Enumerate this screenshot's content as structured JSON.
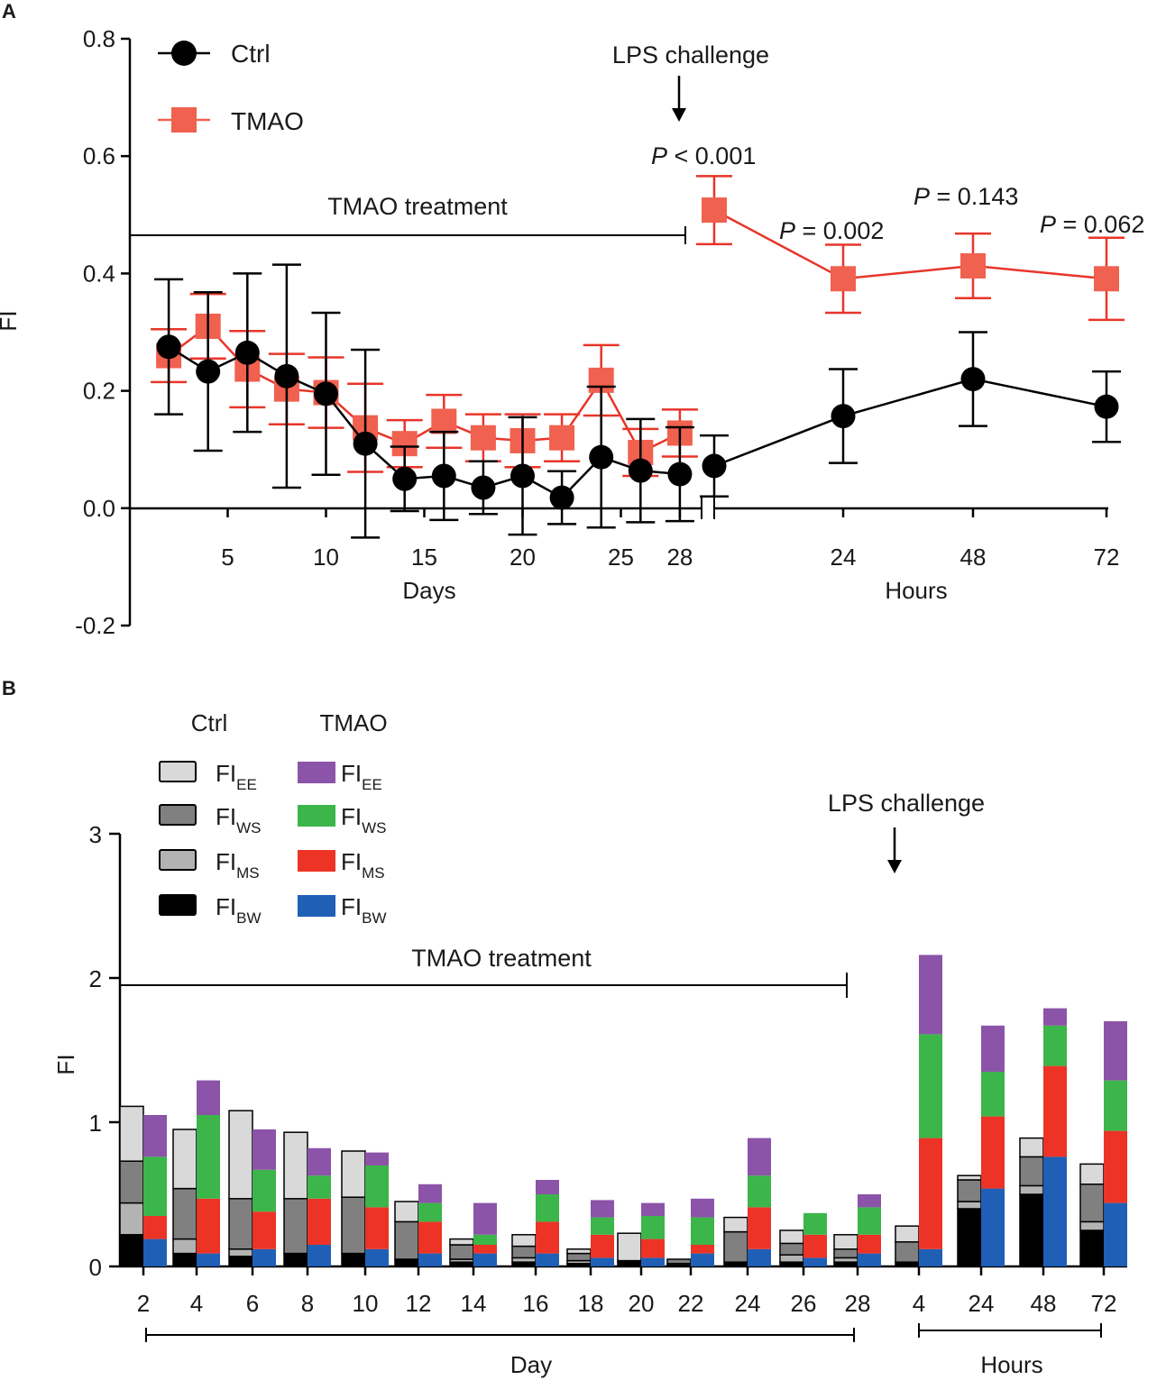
{
  "colors": {
    "ctrl": "#000000",
    "tmao": "#f0614f",
    "tmao_stroke": "#e8352a",
    "ctrl_EE": "#d9d9d9",
    "ctrl_WS": "#808080",
    "ctrl_MS": "#b3b3b3",
    "ctrl_BW": "#000000",
    "tmao_EE": "#8b54a8",
    "tmao_WS": "#3cb54a",
    "tmao_MS": "#ec3326",
    "tmao_BW": "#1f5fb5"
  },
  "chart_data": [
    {
      "panel": "A",
      "type": "line",
      "ylabel": "FI",
      "ylim": [
        -0.2,
        0.8
      ],
      "yticks": [
        "-0.2",
        "0.0",
        "0.2",
        "0.4",
        "0.6",
        "0.8"
      ],
      "ytick_values": [
        -0.2,
        0.0,
        0.2,
        0.4,
        0.6,
        0.8
      ],
      "days_axis": {
        "label": "Days",
        "ticks": [
          "5",
          "10",
          "15",
          "20",
          "25",
          "28"
        ],
        "tick_values": [
          5,
          10,
          15,
          20,
          25,
          28
        ]
      },
      "hours_axis": {
        "label": "Hours",
        "ticks": [
          "24",
          "48",
          "72"
        ],
        "tick_values": [
          24,
          48,
          72
        ]
      },
      "legend": [
        {
          "name": "Ctrl",
          "marker": "circle"
        },
        {
          "name": "TMAO",
          "marker": "square"
        }
      ],
      "series": [
        {
          "name": "Ctrl",
          "days": [
            2,
            4,
            6,
            8,
            10,
            12,
            14,
            16,
            18,
            20,
            22,
            24,
            26,
            28
          ],
          "values": [
            0.275,
            0.233,
            0.265,
            0.225,
            0.195,
            0.11,
            0.05,
            0.055,
            0.035,
            0.055,
            0.018,
            0.087,
            0.064,
            0.058
          ],
          "errors": [
            0.115,
            0.135,
            0.135,
            0.19,
            0.138,
            0.16,
            0.055,
            0.075,
            0.045,
            0.1,
            0.045,
            0.12,
            0.088,
            0.08
          ],
          "hours": [
            4,
            24,
            48,
            72
          ],
          "hour_values": [
            0.072,
            0.157,
            0.22,
            0.173
          ],
          "hour_errors": [
            0.052,
            0.08,
            0.08,
            0.06
          ]
        },
        {
          "name": "TMAO",
          "days": [
            2,
            4,
            6,
            8,
            10,
            12,
            14,
            16,
            18,
            20,
            22,
            24,
            26,
            28
          ],
          "values": [
            0.26,
            0.31,
            0.237,
            0.203,
            0.197,
            0.137,
            0.11,
            0.148,
            0.12,
            0.115,
            0.12,
            0.218,
            0.095,
            0.128
          ],
          "errors": [
            0.045,
            0.055,
            0.065,
            0.06,
            0.06,
            0.075,
            0.04,
            0.045,
            0.04,
            0.045,
            0.04,
            0.06,
            0.04,
            0.04
          ],
          "hours": [
            4,
            24,
            48,
            72
          ],
          "hour_values": [
            0.508,
            0.391,
            0.413,
            0.391
          ],
          "hour_errors": [
            0.058,
            0.058,
            0.055,
            0.07
          ]
        }
      ],
      "annotations": {
        "treatment": "TMAO treatment",
        "challenge": "LPS challenge",
        "p_labels": [
          {
            "p": "P",
            "rest": " < 0.001"
          },
          {
            "p": "P",
            "rest": " = 0.002"
          },
          {
            "p": "P",
            "rest": " = 0.143"
          },
          {
            "p": "P",
            "rest": " = 0.062"
          }
        ]
      }
    },
    {
      "panel": "B",
      "type": "bar",
      "stacked": true,
      "ylabel": "FI",
      "ylim": [
        0,
        3
      ],
      "yticks": [
        "0",
        "1",
        "2",
        "3"
      ],
      "ytick_values": [
        0,
        1,
        2,
        3
      ],
      "day_label": "Day",
      "hours_label": "Hours",
      "categories": [
        "2",
        "4",
        "6",
        "8",
        "10",
        "12",
        "14",
        "16",
        "18",
        "20",
        "22",
        "24",
        "26",
        "28",
        "4",
        "24",
        "48",
        "72"
      ],
      "legend_headers": [
        "Ctrl",
        "TMAO"
      ],
      "components": [
        {
          "base": "FI",
          "sub": "EE"
        },
        {
          "base": "FI",
          "sub": "WS"
        },
        {
          "base": "FI",
          "sub": "MS"
        },
        {
          "base": "FI",
          "sub": "BW"
        }
      ],
      "ctrl": {
        "BW": [
          0.22,
          0.09,
          0.07,
          0.09,
          0.09,
          0.05,
          0.03,
          0.03,
          0.02,
          0.03,
          0.01,
          0.03,
          0.03,
          0.03,
          0.03,
          0.4,
          0.5,
          0.25
        ],
        "MS": [
          0.22,
          0.1,
          0.05,
          0.0,
          0.0,
          0.0,
          0.02,
          0.03,
          0.02,
          0.01,
          0.01,
          0.0,
          0.05,
          0.03,
          0.0,
          0.05,
          0.06,
          0.06
        ],
        "WS": [
          0.29,
          0.35,
          0.35,
          0.38,
          0.39,
          0.26,
          0.1,
          0.08,
          0.05,
          0.0,
          0.03,
          0.21,
          0.08,
          0.06,
          0.14,
          0.15,
          0.2,
          0.26
        ],
        "EE": [
          0.38,
          0.41,
          0.61,
          0.46,
          0.32,
          0.14,
          0.04,
          0.08,
          0.03,
          0.19,
          0.0,
          0.1,
          0.09,
          0.1,
          0.11,
          0.03,
          0.13,
          0.14
        ]
      },
      "tmao": {
        "BW": [
          0.19,
          0.09,
          0.12,
          0.15,
          0.12,
          0.09,
          0.09,
          0.09,
          0.06,
          0.06,
          0.09,
          0.12,
          0.06,
          0.09,
          0.12,
          0.54,
          0.76,
          0.44
        ],
        "MS": [
          0.16,
          0.38,
          0.26,
          0.32,
          0.29,
          0.22,
          0.06,
          0.22,
          0.16,
          0.13,
          0.06,
          0.29,
          0.16,
          0.13,
          0.77,
          0.5,
          0.63,
          0.5
        ],
        "WS": [
          0.41,
          0.58,
          0.29,
          0.16,
          0.29,
          0.13,
          0.07,
          0.19,
          0.12,
          0.16,
          0.19,
          0.22,
          0.15,
          0.19,
          0.72,
          0.31,
          0.28,
          0.35
        ],
        "EE": [
          0.29,
          0.24,
          0.28,
          0.19,
          0.09,
          0.13,
          0.22,
          0.1,
          0.12,
          0.09,
          0.13,
          0.26,
          0.0,
          0.09,
          0.55,
          0.32,
          0.12,
          0.41
        ]
      },
      "annotations": {
        "treatment": "TMAO treatment",
        "challenge": "LPS challenge"
      }
    }
  ]
}
